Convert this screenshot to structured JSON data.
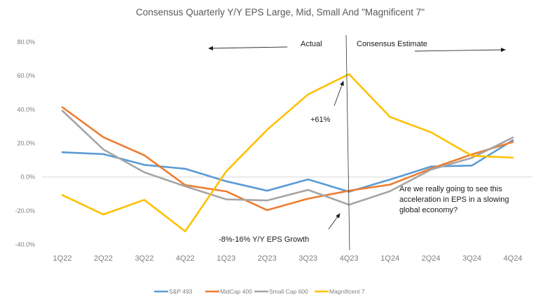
{
  "chart_data": {
    "type": "line",
    "title": "Consensus Quarterly Y/Y EPS Large, Mid, Small And \"Magnificent 7\"",
    "xlabel": "",
    "ylabel": "",
    "categories": [
      "1Q22",
      "2Q22",
      "3Q22",
      "4Q22",
      "1Q23",
      "2Q23",
      "3Q23",
      "4Q23",
      "1Q24",
      "2Q24",
      "3Q24",
      "4Q24"
    ],
    "ylim": [
      -40,
      80
    ],
    "yticks": [
      80,
      60,
      40,
      20,
      0,
      -20,
      -40
    ],
    "ytick_labels": [
      "80.0%",
      "60.0%",
      "40.0%",
      "20.0%",
      "0.0%",
      "-20.0%",
      "-40.0%"
    ],
    "grid": false,
    "zero_line": true,
    "legend_position": "bottom",
    "series": [
      {
        "name": "S&P 493",
        "color": "#5b9bd5",
        "values": [
          14.7,
          13.6,
          7.2,
          4.9,
          -2.5,
          -8.1,
          -1.4,
          -8.7,
          -1.5,
          6.2,
          6.8,
          21.8
        ]
      },
      {
        "name": "MidCap 400",
        "color": "#ed7d31",
        "values": [
          41.4,
          23.6,
          12.9,
          -4.8,
          -8.5,
          -19.6,
          -12.8,
          -8.1,
          -4.5,
          5.0,
          13.4,
          20.8
        ]
      },
      {
        "name": "Small Cap 600",
        "color": "#a5a5a5",
        "values": [
          39.3,
          16.4,
          2.8,
          -5.5,
          -13.2,
          -13.9,
          -7.6,
          -16.4,
          -8.4,
          4.4,
          11.4,
          23.4
        ]
      },
      {
        "name": "Magnificent 7",
        "color": "#ffc000",
        "values": [
          -10.7,
          -22.2,
          -13.5,
          -32.2,
          3.3,
          28.0,
          49.0,
          61.0,
          35.6,
          26.5,
          12.6,
          11.5
        ]
      }
    ],
    "divider_after_category": "4Q23",
    "annotations": {
      "actual_label": "Actual",
      "estimate_label": "Consensus Estimate",
      "peak_label": "+61%",
      "trough_label": "-8%-16% Y/Y EPS Growth",
      "question_lines": [
        "Are we really going to see this",
        "acceleration in EPS in a slowing",
        "global economy?"
      ]
    }
  }
}
